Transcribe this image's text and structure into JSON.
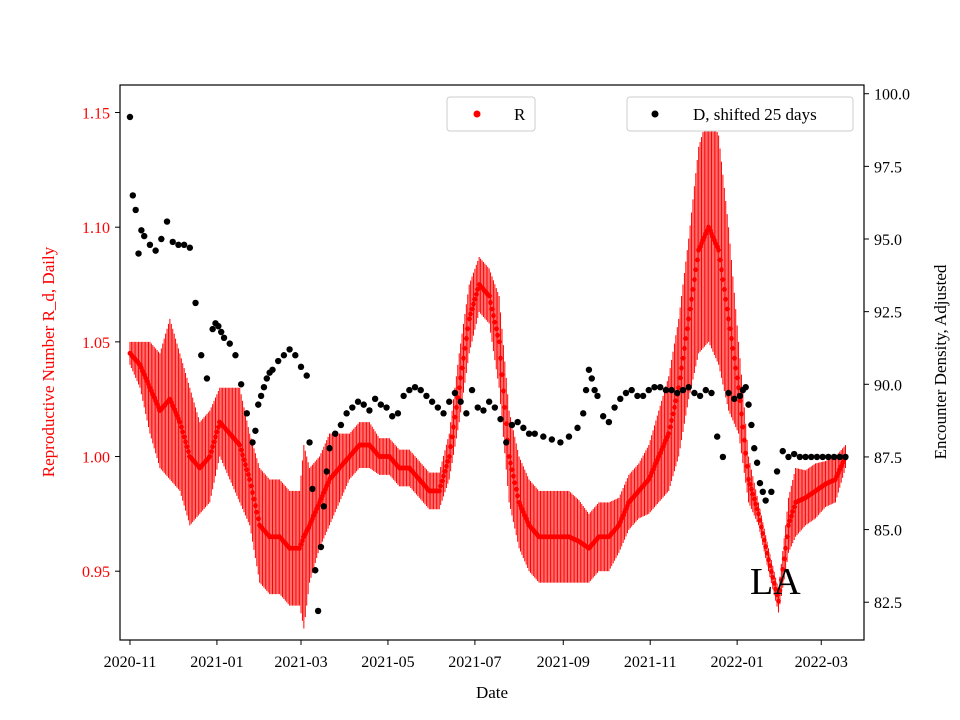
{
  "chart_data": {
    "type": "scatter",
    "xlabel": "Date",
    "ylabel_left": "Reproductive Number R_d, Daily",
    "ylabel_right": "Encounter Density, Adjusted",
    "x_start_date": "2020-11-01",
    "xlim_days": [
      -7,
      515
    ],
    "ylim_left": [
      0.92,
      1.162
    ],
    "ylim_right": [
      81.2,
      100.3
    ],
    "x_ticks": [
      {
        "day": 0,
        "label": "2020-11"
      },
      {
        "day": 61,
        "label": "2021-01"
      },
      {
        "day": 120,
        "label": "2021-03"
      },
      {
        "day": 181,
        "label": "2021-05"
      },
      {
        "day": 242,
        "label": "2021-07"
      },
      {
        "day": 304,
        "label": "2021-09"
      },
      {
        "day": 365,
        "label": "2021-11"
      },
      {
        "day": 426,
        "label": "2022-01"
      },
      {
        "day": 485,
        "label": "2022-03"
      }
    ],
    "y_ticks_left": [
      {
        "value": 0.95,
        "label": "0.95"
      },
      {
        "value": 1.0,
        "label": "1.00"
      },
      {
        "value": 1.05,
        "label": "1.05"
      },
      {
        "value": 1.1,
        "label": "1.10"
      },
      {
        "value": 1.15,
        "label": "1.15"
      }
    ],
    "y_ticks_right": [
      {
        "value": 82.5,
        "label": "82.5"
      },
      {
        "value": 85.0,
        "label": "85.0"
      },
      {
        "value": 87.5,
        "label": "87.5"
      },
      {
        "value": 90.0,
        "label": "90.0"
      },
      {
        "value": 92.5,
        "label": "92.5"
      },
      {
        "value": 95.0,
        "label": "95.0"
      },
      {
        "value": 97.5,
        "label": "97.5"
      },
      {
        "value": 100.0,
        "label": "100.0"
      }
    ],
    "annotation": "LA",
    "series": [
      {
        "name": "R",
        "axis": "left",
        "color": "#ff0000",
        "marker": "point",
        "legend_position": "top-center",
        "x_days": [
          0,
          7,
          14,
          21,
          28,
          35,
          42,
          49,
          56,
          63,
          70,
          77,
          84,
          91,
          98,
          105,
          112,
          119,
          122,
          126,
          133,
          140,
          147,
          154,
          161,
          168,
          175,
          182,
          189,
          196,
          203,
          210,
          217,
          224,
          231,
          238,
          245,
          252,
          259,
          266,
          273,
          280,
          287,
          294,
          301,
          308,
          315,
          322,
          329,
          336,
          343,
          350,
          357,
          364,
          371,
          378,
          385,
          392,
          399,
          406,
          413,
          420,
          427,
          434,
          441,
          448,
          455,
          460,
          462,
          467,
          474,
          481,
          488,
          495,
          502
        ],
        "values": [
          1.045,
          1.04,
          1.03,
          1.02,
          1.025,
          1.015,
          1.0,
          0.995,
          1.0,
          1.015,
          1.01,
          1.005,
          0.99,
          0.97,
          0.965,
          0.965,
          0.96,
          0.96,
          0.965,
          0.97,
          0.98,
          0.99,
          0.995,
          1.0,
          1.005,
          1.005,
          1.0,
          1.0,
          0.995,
          0.995,
          0.99,
          0.985,
          0.985,
          1.0,
          1.03,
          1.06,
          1.075,
          1.07,
          1.05,
          1.0,
          0.98,
          0.97,
          0.965,
          0.965,
          0.965,
          0.965,
          0.963,
          0.96,
          0.965,
          0.965,
          0.97,
          0.98,
          0.985,
          0.99,
          1.0,
          1.01,
          1.03,
          1.06,
          1.09,
          1.1,
          1.09,
          1.06,
          1.03,
          0.99,
          0.975,
          0.955,
          0.937,
          0.96,
          0.97,
          0.98,
          0.982,
          0.985,
          0.988,
          0.99,
          1.0
        ],
        "error": [
          0.005,
          0.01,
          0.02,
          0.025,
          0.035,
          0.03,
          0.03,
          0.02,
          0.02,
          0.015,
          0.02,
          0.025,
          0.02,
          0.025,
          0.025,
          0.025,
          0.025,
          0.025,
          0.04,
          0.025,
          0.02,
          0.02,
          0.015,
          0.01,
          0.01,
          0.01,
          0.008,
          0.008,
          0.008,
          0.008,
          0.008,
          0.008,
          0.008,
          0.01,
          0.015,
          0.015,
          0.012,
          0.012,
          0.02,
          0.02,
          0.02,
          0.02,
          0.02,
          0.02,
          0.02,
          0.02,
          0.018,
          0.015,
          0.015,
          0.015,
          0.012,
          0.012,
          0.012,
          0.015,
          0.02,
          0.025,
          0.03,
          0.035,
          0.045,
          0.05,
          0.05,
          0.04,
          0.02,
          0.01,
          0.005,
          0.005,
          0.005,
          0.01,
          0.012,
          0.015,
          0.012,
          0.012,
          0.01,
          0.01,
          0.005
        ]
      },
      {
        "name": "D, shifted 25 days",
        "axis": "right",
        "color": "#000000",
        "marker": "point",
        "legend_position": "top-right",
        "x_days": [
          0,
          2,
          4,
          6,
          8,
          10,
          14,
          18,
          22,
          26,
          30,
          34,
          38,
          42,
          46,
          50,
          54,
          58,
          60,
          62,
          64,
          66,
          70,
          74,
          78,
          82,
          86,
          88,
          90,
          92,
          94,
          96,
          98,
          100,
          104,
          108,
          112,
          116,
          120,
          124,
          126,
          128,
          130,
          132,
          134,
          136,
          138,
          140,
          144,
          148,
          152,
          156,
          160,
          164,
          168,
          172,
          176,
          180,
          184,
          188,
          192,
          196,
          200,
          204,
          208,
          212,
          216,
          220,
          224,
          228,
          232,
          236,
          240,
          244,
          248,
          252,
          256,
          260,
          264,
          268,
          272,
          276,
          280,
          284,
          290,
          296,
          302,
          308,
          314,
          318,
          320,
          322,
          324,
          326,
          328,
          332,
          336,
          340,
          344,
          348,
          352,
          356,
          360,
          364,
          368,
          372,
          376,
          380,
          384,
          388,
          392,
          396,
          400,
          404,
          408,
          412,
          416,
          420,
          424,
          428,
          430,
          432,
          434,
          436,
          438,
          440,
          442,
          444,
          446,
          450,
          454,
          458,
          462,
          466,
          470,
          474,
          478,
          482,
          486,
          490,
          494,
          498,
          502
        ],
        "values": [
          99.2,
          96.5,
          96.0,
          94.5,
          95.3,
          95.1,
          94.8,
          94.6,
          95.0,
          95.6,
          94.9,
          94.8,
          94.8,
          94.7,
          92.8,
          91.0,
          90.2,
          91.9,
          92.1,
          92.0,
          91.8,
          91.6,
          91.4,
          91.0,
          90.0,
          89.0,
          88.0,
          88.4,
          89.3,
          89.6,
          89.9,
          90.2,
          90.4,
          90.5,
          90.8,
          91.0,
          91.2,
          91.0,
          90.6,
          90.3,
          88.0,
          86.4,
          83.6,
          82.2,
          84.4,
          85.8,
          87.0,
          87.8,
          88.3,
          88.6,
          89.0,
          89.2,
          89.4,
          89.3,
          89.1,
          89.5,
          89.3,
          89.2,
          88.9,
          89.0,
          89.6,
          89.8,
          89.9,
          89.8,
          89.6,
          89.4,
          89.2,
          89.0,
          89.4,
          89.7,
          89.4,
          89.0,
          89.8,
          89.2,
          89.1,
          89.4,
          89.2,
          88.8,
          88.0,
          88.6,
          88.7,
          88.5,
          88.3,
          88.3,
          88.2,
          88.1,
          88.0,
          88.2,
          88.5,
          89.0,
          89.8,
          90.5,
          90.2,
          89.8,
          89.6,
          88.9,
          88.7,
          89.2,
          89.5,
          89.7,
          89.8,
          89.6,
          89.6,
          89.8,
          89.9,
          89.9,
          89.8,
          89.8,
          89.7,
          89.8,
          89.9,
          89.7,
          89.6,
          89.8,
          89.7,
          88.2,
          87.5,
          89.7,
          89.5,
          89.6,
          89.8,
          89.9,
          89.3,
          88.6,
          87.8,
          87.3,
          86.6,
          86.3,
          86.0,
          86.3,
          87.0,
          87.7,
          87.5,
          87.6,
          87.5,
          87.5,
          87.5,
          87.5,
          87.5,
          87.5,
          87.5,
          87.5,
          87.5
        ]
      }
    ]
  }
}
